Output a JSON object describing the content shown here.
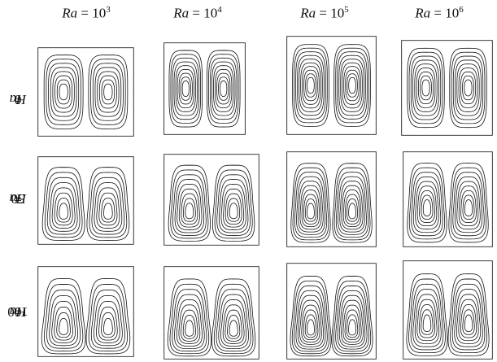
{
  "figure": {
    "ra_label": {
      "symbol": "Ra",
      "equals": " = ",
      "base": "10"
    },
    "ha_label": {
      "symbol": "Ha",
      "equals": " = "
    },
    "columns": [
      {
        "exponent": "3"
      },
      {
        "exponent": "4"
      },
      {
        "exponent": "5"
      },
      {
        "exponent": "6"
      }
    ],
    "rows": [
      {
        "value": "0"
      },
      {
        "value": "50"
      },
      {
        "value": "100"
      }
    ]
  }
}
